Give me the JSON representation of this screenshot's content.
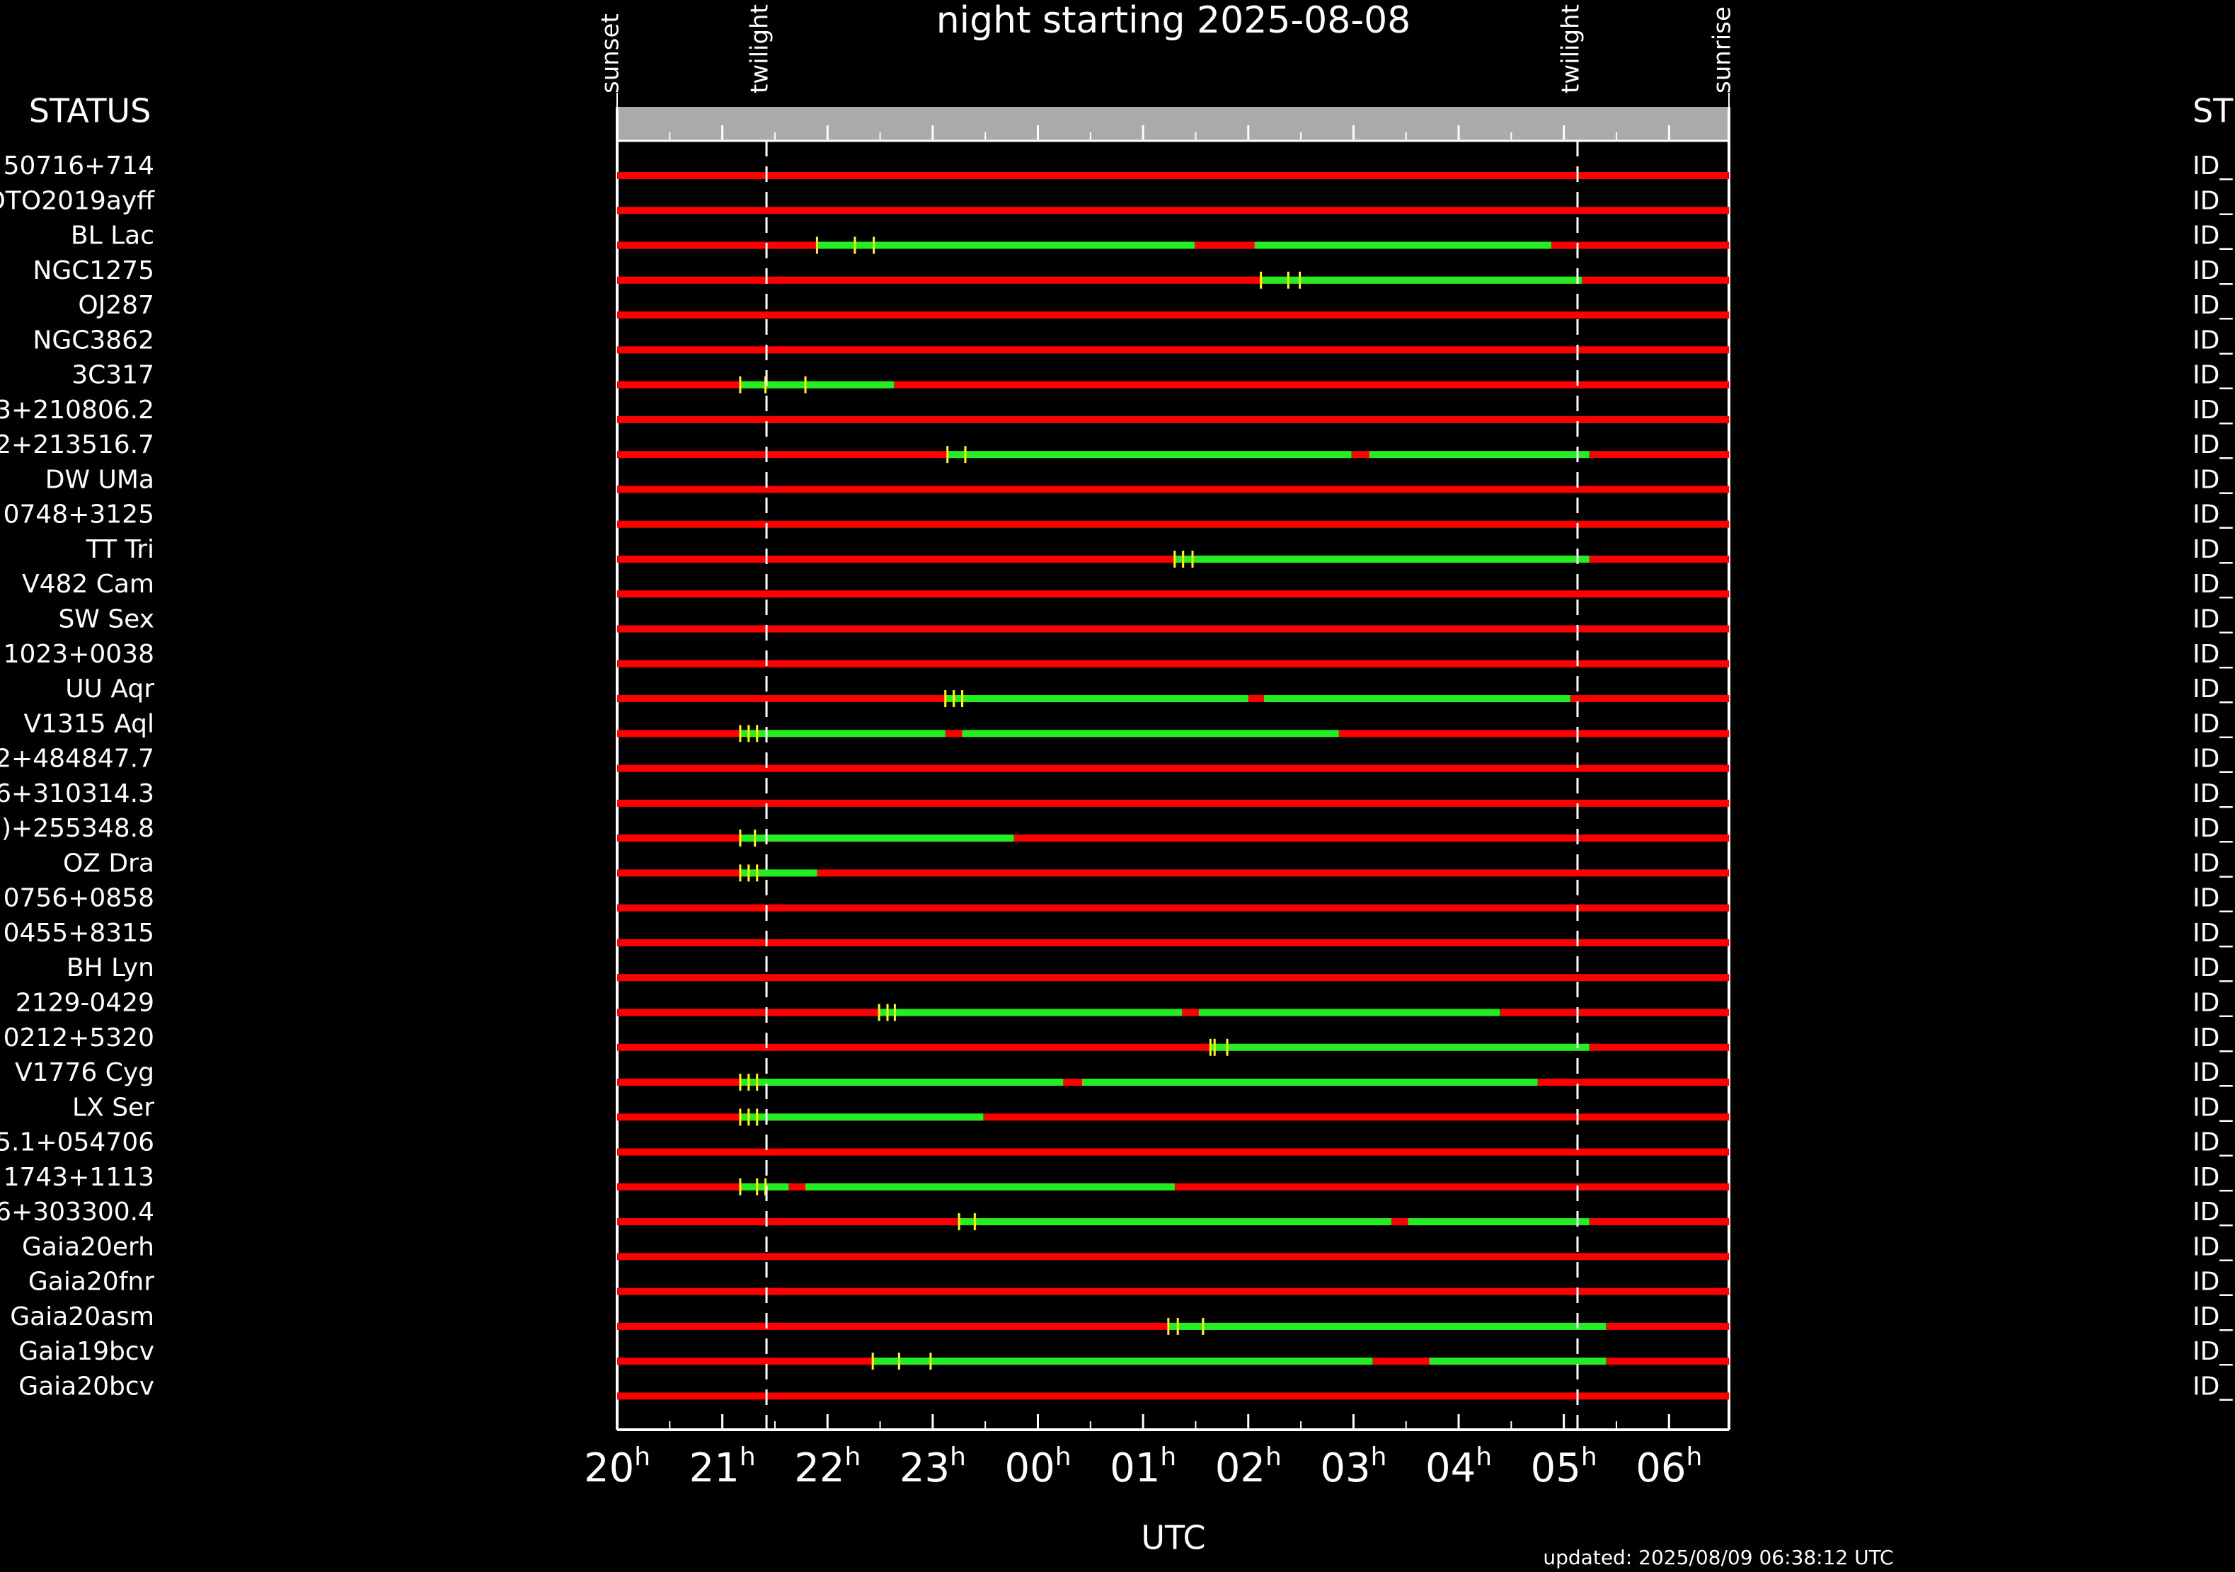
{
  "chart_data": {
    "type": "timeline",
    "title": "night starting 2025-08-08",
    "left_header": "STATUS",
    "right_header": "ST",
    "x_label": "UTC",
    "tick_suffix": "h",
    "footer": "updated: 2025/08/09 06:38:12 UTC",
    "xlim": [
      20,
      30.57
    ],
    "xticks": [
      20,
      21,
      22,
      23,
      {
        "value": 24,
        "label": "00"
      },
      {
        "value": 25,
        "label": "01"
      },
      {
        "value": 26,
        "label": "02"
      },
      {
        "value": 27,
        "label": "03"
      },
      {
        "value": 28,
        "label": "04"
      },
      {
        "value": 29,
        "label": "05"
      },
      {
        "value": 30,
        "label": "06"
      }
    ],
    "events": [
      {
        "label": "sunset",
        "value": 20.0
      },
      {
        "label": "twilight",
        "value": 21.42
      },
      {
        "label": "twilight",
        "value": 29.13
      },
      {
        "label": "sunrise",
        "value": 30.57
      }
    ],
    "colors": {
      "unavailable": "#ff0000",
      "window": "#22ee22",
      "mark": "#ffff00",
      "header_bar": "#aaaaaa"
    },
    "rows": [
      {
        "name": "50716+714",
        "id": "ID_",
        "windows": [],
        "marks": []
      },
      {
        "name": "OTO2019ayff",
        "id": "ID_",
        "windows": [],
        "marks": []
      },
      {
        "name": "BL Lac",
        "id": "ID_",
        "windows": [
          [
            21.9,
            25.49
          ],
          [
            26.06,
            28.88
          ]
        ],
        "marks": [
          21.9,
          22.26,
          22.44
        ]
      },
      {
        "name": "NGC1275",
        "id": "ID_",
        "windows": [
          [
            26.12,
            29.17
          ]
        ],
        "marks": [
          26.12,
          26.38,
          26.49
        ]
      },
      {
        "name": "OJ287",
        "id": "ID_",
        "windows": [],
        "marks": []
      },
      {
        "name": "NGC3862",
        "id": "ID_",
        "windows": [],
        "marks": []
      },
      {
        "name": "3C317",
        "id": "ID_",
        "windows": [
          [
            21.17,
            22.63
          ]
        ],
        "marks": [
          21.17,
          21.41,
          21.79
        ]
      },
      {
        "name": "3+210806.2",
        "id": "ID_",
        "windows": [],
        "marks": []
      },
      {
        "name": "2+213516.7",
        "id": "ID_",
        "windows": [
          [
            23.14,
            26.98
          ],
          [
            27.15,
            29.24
          ]
        ],
        "marks": [
          23.14,
          23.31
        ]
      },
      {
        "name": "DW UMa",
        "id": "ID_",
        "windows": [],
        "marks": []
      },
      {
        "name": "0748+3125",
        "id": "ID_",
        "windows": [],
        "marks": []
      },
      {
        "name": "TT Tri",
        "id": "ID_",
        "windows": [
          [
            25.3,
            29.24
          ]
        ],
        "marks": [
          25.3,
          25.38,
          25.47
        ]
      },
      {
        "name": "V482 Cam",
        "id": "ID_",
        "windows": [],
        "marks": []
      },
      {
        "name": "SW Sex",
        "id": "ID_",
        "windows": [],
        "marks": []
      },
      {
        "name": "1023+0038",
        "id": "ID_",
        "windows": [],
        "marks": []
      },
      {
        "name": "UU Aqr",
        "id": "ID_",
        "windows": [
          [
            23.12,
            26.0
          ],
          [
            26.15,
            29.06
          ]
        ],
        "marks": [
          23.12,
          23.2,
          23.28
        ]
      },
      {
        "name": "V1315 Aql",
        "id": "ID_",
        "windows": [
          [
            21.17,
            23.12
          ],
          [
            23.28,
            26.86
          ]
        ],
        "marks": [
          21.17,
          21.25,
          21.33
        ]
      },
      {
        "name": "2+484847.7",
        "id": "ID_",
        "windows": [],
        "marks": []
      },
      {
        "name": "6+310314.3",
        "id": "ID_",
        "windows": [],
        "marks": []
      },
      {
        "name": ")+255348.8",
        "id": "ID_",
        "windows": [
          [
            21.17,
            23.77
          ]
        ],
        "marks": [
          21.17,
          21.31
        ]
      },
      {
        "name": "OZ Dra",
        "id": "ID_",
        "windows": [
          [
            21.17,
            21.9
          ]
        ],
        "marks": [
          21.17,
          21.25,
          21.33
        ]
      },
      {
        "name": "0756+0858",
        "id": "ID_",
        "windows": [],
        "marks": []
      },
      {
        "name": "0455+8315",
        "id": "ID_",
        "windows": [],
        "marks": []
      },
      {
        "name": "BH Lyn",
        "id": "ID_",
        "windows": [],
        "marks": []
      },
      {
        "name": "2129-0429",
        "id": "ID_",
        "windows": [
          [
            22.49,
            25.37
          ],
          [
            25.53,
            28.39
          ]
        ],
        "marks": [
          22.49,
          22.57,
          22.64
        ]
      },
      {
        "name": "0212+5320",
        "id": "ID_",
        "windows": [
          [
            25.64,
            29.24
          ]
        ],
        "marks": [
          25.64,
          25.68,
          25.8
        ]
      },
      {
        "name": "V1776 Cyg",
        "id": "ID_",
        "windows": [
          [
            21.17,
            24.24
          ],
          [
            24.42,
            28.75
          ]
        ],
        "marks": [
          21.17,
          21.25,
          21.33
        ]
      },
      {
        "name": "LX Ser",
        "id": "ID_",
        "windows": [
          [
            21.17,
            23.48
          ]
        ],
        "marks": [
          21.17,
          21.25,
          21.33
        ]
      },
      {
        "name": "5.1+054706",
        "id": "ID_",
        "windows": [],
        "marks": []
      },
      {
        "name": "1743+1113",
        "id": "ID_",
        "windows": [
          [
            21.17,
            21.63
          ],
          [
            21.79,
            25.3
          ]
        ],
        "marks": [
          21.17,
          21.33,
          21.41
        ]
      },
      {
        "name": "6+303300.4",
        "id": "ID_",
        "windows": [
          [
            23.25,
            27.36
          ],
          [
            27.52,
            29.24
          ]
        ],
        "marks": [
          23.25,
          23.4
        ]
      },
      {
        "name": "Gaia20erh",
        "id": "ID_",
        "windows": [],
        "marks": []
      },
      {
        "name": "Gaia20fnr",
        "id": "ID_",
        "windows": [],
        "marks": []
      },
      {
        "name": "Gaia20asm",
        "id": "ID_",
        "windows": [
          [
            25.24,
            29.4
          ]
        ],
        "marks": [
          25.24,
          25.33,
          25.57
        ]
      },
      {
        "name": "Gaia19bcv",
        "id": "ID_",
        "windows": [
          [
            22.43,
            27.18
          ],
          [
            27.72,
            29.4
          ]
        ],
        "marks": [
          22.43,
          22.68,
          22.98
        ]
      },
      {
        "name": "Gaia20bcv",
        "id": "ID_",
        "windows": [],
        "marks": []
      }
    ]
  }
}
